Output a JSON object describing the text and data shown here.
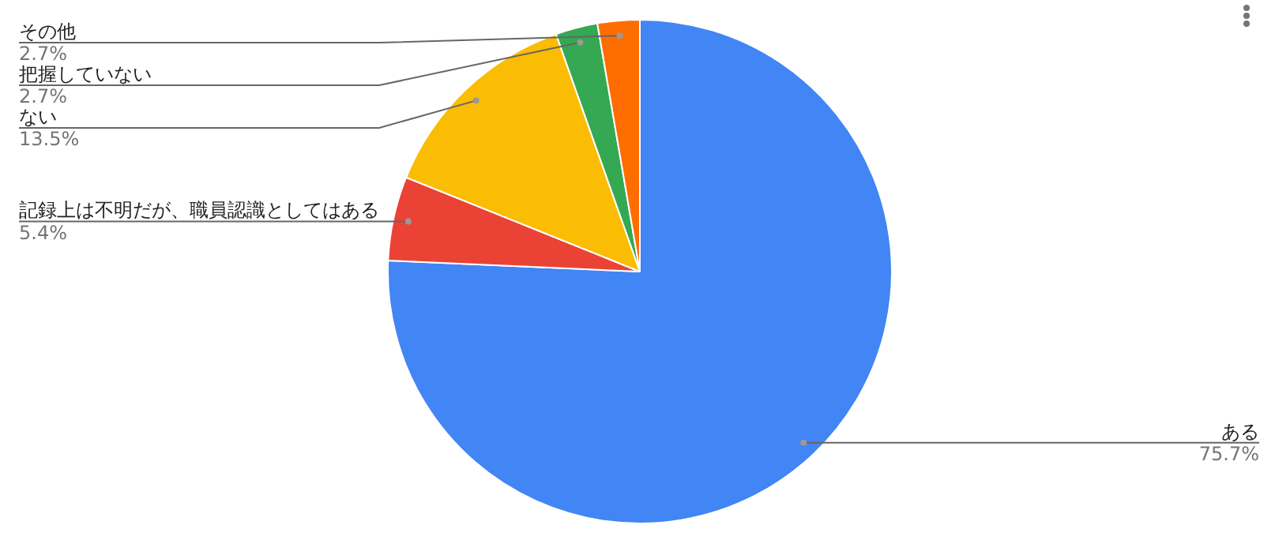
{
  "chart_data": {
    "type": "pie",
    "categories": [
      "ある",
      "記録上は不明だが、職員認識としてはある",
      "ない",
      "把握していない",
      "その他"
    ],
    "values": [
      75.7,
      5.4,
      13.5,
      2.7,
      2.7
    ],
    "value_labels": [
      "75.7%",
      "5.4%",
      "13.5%",
      "2.7%",
      "2.7%"
    ],
    "colors": [
      "#4285f4",
      "#ea4335",
      "#fbbc04",
      "#34a853",
      "#ff6d01"
    ],
    "legend": false
  }
}
